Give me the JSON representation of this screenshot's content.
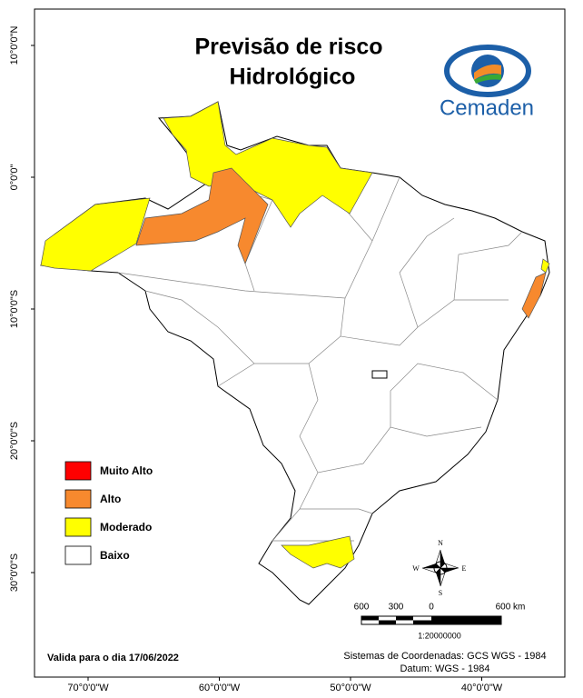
{
  "title": [
    "Previsão de risco",
    "Hidrológico"
  ],
  "logo": "Cemaden",
  "legend": [
    {
      "label": "Muito Alto",
      "color": "#ff0000"
    },
    {
      "label": "Alto",
      "color": "#f7892e"
    },
    {
      "label": "Moderado",
      "color": "#ffff00"
    },
    {
      "label": "Baixo",
      "color": "#ffffff"
    }
  ],
  "lat_labels": [
    "10°0'0\"N",
    "0°0'0\"",
    "10°0'0\"S",
    "20°0'0\"S",
    "30°0'0\"S"
  ],
  "lon_labels": [
    "70°0'0\"W",
    "60°0'0\"W",
    "50°0'0\"W",
    "40°0'0\"W"
  ],
  "compass": [
    "N",
    "S",
    "E",
    "W"
  ],
  "scale": {
    "labels": [
      "600",
      "300",
      "0",
      "600 km"
    ],
    "ratio": "1:20000000"
  },
  "validity": "Valida para o dia 17/06/2022",
  "coordinates": [
    "Sistemas de Coordenadas: GCS WGS - 1984",
    "Datum: WGS - 1984"
  ]
}
